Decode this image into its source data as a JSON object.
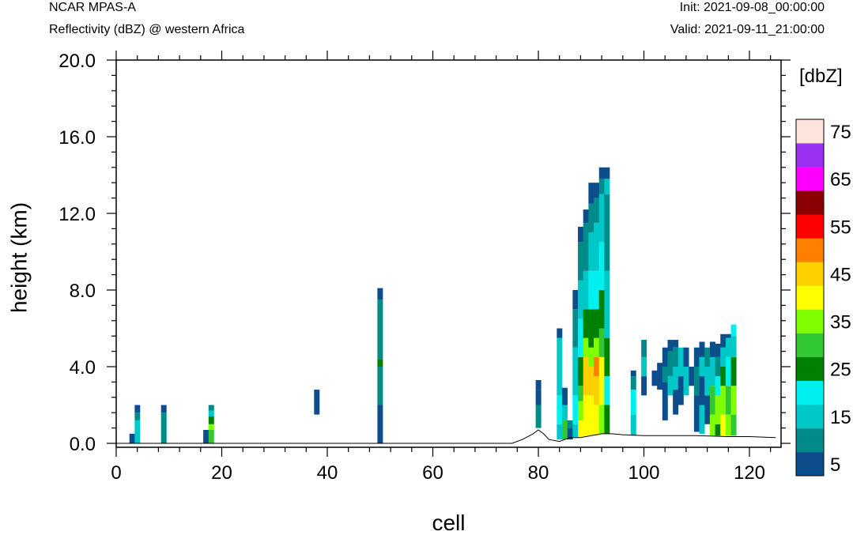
{
  "header": {
    "left_top": "NCAR MPAS-A",
    "left_bottom": "Reflectivity (dBZ) @ western Africa",
    "right_top": "Init: 2021-09-08_00:00:00",
    "right_bottom": "Valid: 2021-09-11_21:00:00"
  },
  "chart_data": {
    "type": "heatmap",
    "title": "Reflectivity (dBZ) @ western Africa",
    "xlabel": "cell",
    "ylabel": "height (km)",
    "xlim": [
      0,
      126
    ],
    "ylim": [
      0,
      20
    ],
    "x_ticks": [
      0,
      20,
      40,
      60,
      80,
      100,
      120
    ],
    "x_tick_labels": [
      "0",
      "20",
      "40",
      "60",
      "80",
      "100",
      "120"
    ],
    "y_ticks": [
      0,
      4,
      8,
      12,
      16,
      20
    ],
    "y_tick_labels": [
      "0.0",
      "4.0",
      "8.0",
      "12.0",
      "16.0",
      "20.0"
    ],
    "colorbar": {
      "label": "[dbZ]",
      "levels": [
        5,
        10,
        15,
        20,
        25,
        30,
        35,
        40,
        45,
        50,
        55,
        60,
        65,
        70,
        75
      ],
      "tick_labels": [
        "5",
        "15",
        "25",
        "35",
        "45",
        "55",
        "65",
        "75"
      ],
      "colors": [
        "#0e4d8c",
        "#008a8a",
        "#00c8c8",
        "#00f0f0",
        "#008000",
        "#32c832",
        "#80ff00",
        "#ffff00",
        "#ffd000",
        "#ff8000",
        "#ff0000",
        "#8b0000",
        "#ff00ff",
        "#9b30f0",
        "#ffe4dc"
      ]
    },
    "terrain_km": [
      [
        0,
        0
      ],
      [
        75,
        0
      ],
      [
        77,
        0.2
      ],
      [
        79,
        0.5
      ],
      [
        80,
        0.7
      ],
      [
        81,
        0.5
      ],
      [
        82,
        0.2
      ],
      [
        84,
        0.1
      ],
      [
        86,
        0.3
      ],
      [
        88,
        0.3
      ],
      [
        90,
        0.4
      ],
      [
        92,
        0.5
      ],
      [
        94,
        0.5
      ],
      [
        96,
        0.45
      ],
      [
        100,
        0.4
      ],
      [
        106,
        0.4
      ],
      [
        110,
        0.4
      ],
      [
        116,
        0.35
      ],
      [
        120,
        0.35
      ],
      [
        125,
        0.3
      ]
    ],
    "columns": [
      {
        "x": 3,
        "cells": [
          [
            0,
            0.5,
            5
          ]
        ]
      },
      {
        "x": 4,
        "cells": [
          [
            0,
            1.2,
            15
          ],
          [
            1.2,
            1.6,
            10
          ],
          [
            1.6,
            2.0,
            5
          ]
        ]
      },
      {
        "x": 9,
        "cells": [
          [
            0,
            1.6,
            10
          ],
          [
            1.6,
            2.0,
            5
          ]
        ]
      },
      {
        "x": 17,
        "cells": [
          [
            0,
            0.7,
            5
          ]
        ]
      },
      {
        "x": 18,
        "cells": [
          [
            0,
            0.7,
            30
          ],
          [
            0.7,
            1.0,
            35
          ],
          [
            1.0,
            1.4,
            25
          ],
          [
            1.4,
            1.7,
            15
          ],
          [
            1.7,
            2.0,
            10
          ]
        ]
      },
      {
        "x": 38,
        "cells": [
          [
            1.5,
            2.8,
            5
          ]
        ]
      },
      {
        "x": 50,
        "cells": [
          [
            0,
            2.0,
            5
          ],
          [
            2.0,
            4.0,
            10
          ],
          [
            4.0,
            4.4,
            25
          ],
          [
            4.4,
            7.5,
            10
          ],
          [
            7.5,
            8.1,
            5
          ]
        ]
      },
      {
        "x": 80,
        "cells": [
          [
            0.8,
            2.0,
            10
          ],
          [
            2.0,
            2.8,
            5
          ],
          [
            2.8,
            3.3,
            5
          ]
        ]
      },
      {
        "x": 84,
        "cells": [
          [
            0.2,
            1.0,
            15
          ],
          [
            1.0,
            2.5,
            20
          ],
          [
            2.5,
            5.5,
            15
          ],
          [
            5.5,
            6.0,
            5
          ]
        ]
      },
      {
        "x": 85,
        "cells": [
          [
            0.2,
            1.2,
            30
          ],
          [
            1.2,
            2.0,
            15
          ],
          [
            2.0,
            2.9,
            5
          ]
        ]
      },
      {
        "x": 86,
        "cells": [
          [
            0.2,
            0.8,
            5
          ],
          [
            0.8,
            1.2,
            10
          ]
        ]
      },
      {
        "x": 87,
        "cells": [
          [
            0.3,
            1.0,
            15
          ],
          [
            1.0,
            2.5,
            20
          ],
          [
            2.5,
            5.0,
            15
          ],
          [
            5.0,
            7.0,
            10
          ],
          [
            7.0,
            8.0,
            5
          ]
        ]
      },
      {
        "x": 88,
        "cells": [
          [
            0.3,
            1.2,
            40
          ],
          [
            1.2,
            2.2,
            35
          ],
          [
            2.2,
            3.0,
            30
          ],
          [
            3.0,
            4.5,
            25
          ],
          [
            4.5,
            6.5,
            20
          ],
          [
            6.5,
            8.5,
            15
          ],
          [
            8.5,
            10.5,
            10
          ],
          [
            10.5,
            11.3,
            5
          ]
        ]
      },
      {
        "x": 89,
        "cells": [
          [
            0.4,
            2.5,
            40
          ],
          [
            2.5,
            4.5,
            45
          ],
          [
            4.5,
            5.5,
            35
          ],
          [
            5.5,
            7.0,
            25
          ],
          [
            7.0,
            9.0,
            15
          ],
          [
            9.0,
            11.5,
            10
          ],
          [
            11.5,
            12.2,
            5
          ]
        ]
      },
      {
        "x": 90,
        "cells": [
          [
            0.4,
            2.5,
            40
          ],
          [
            2.5,
            4.0,
            45
          ],
          [
            4.0,
            5.0,
            35
          ],
          [
            5.0,
            7.0,
            25
          ],
          [
            7.0,
            9.0,
            20
          ],
          [
            9.0,
            11.0,
            15
          ],
          [
            11.0,
            12.5,
            10
          ],
          [
            12.5,
            13.6,
            5
          ]
        ]
      },
      {
        "x": 91,
        "cells": [
          [
            0.4,
            2.0,
            40
          ],
          [
            2.0,
            3.5,
            45
          ],
          [
            3.5,
            4.5,
            50
          ],
          [
            4.5,
            5.5,
            35
          ],
          [
            5.5,
            7.0,
            25
          ],
          [
            7.0,
            9.0,
            20
          ],
          [
            9.0,
            11.5,
            15
          ],
          [
            11.5,
            12.8,
            10
          ],
          [
            12.8,
            13.6,
            5
          ]
        ]
      },
      {
        "x": 92,
        "cells": [
          [
            0.5,
            2.0,
            35
          ],
          [
            2.0,
            4.5,
            40
          ],
          [
            4.5,
            6.0,
            30
          ],
          [
            6.0,
            8.0,
            25
          ],
          [
            8.0,
            10.5,
            20
          ],
          [
            10.5,
            13.0,
            15
          ],
          [
            13.0,
            13.8,
            10
          ],
          [
            13.8,
            14.4,
            5
          ]
        ]
      },
      {
        "x": 93,
        "cells": [
          [
            0.5,
            2.0,
            25
          ],
          [
            2.0,
            3.5,
            20
          ],
          [
            3.5,
            5.5,
            25
          ],
          [
            5.5,
            9.0,
            15
          ],
          [
            9.0,
            13.0,
            10
          ],
          [
            13.0,
            13.8,
            15
          ],
          [
            13.8,
            14.4,
            5
          ]
        ]
      },
      {
        "x": 98,
        "cells": [
          [
            0.4,
            1.5,
            15
          ],
          [
            1.5,
            2.8,
            20
          ],
          [
            2.8,
            3.5,
            10
          ],
          [
            3.5,
            3.8,
            5
          ]
        ]
      },
      {
        "x": 100,
        "cells": [
          [
            2.5,
            3.5,
            5
          ],
          [
            3.5,
            4.5,
            15
          ],
          [
            4.5,
            5.4,
            10
          ]
        ]
      },
      {
        "x": 102,
        "cells": [
          [
            3.0,
            3.8,
            5
          ]
        ]
      },
      {
        "x": 103,
        "cells": [
          [
            2.8,
            4.2,
            5
          ]
        ]
      },
      {
        "x": 104,
        "cells": [
          [
            1.2,
            3.2,
            5
          ],
          [
            3.2,
            4.0,
            10
          ],
          [
            4.0,
            5.0,
            5
          ]
        ]
      },
      {
        "x": 105,
        "cells": [
          [
            2.5,
            3.5,
            15
          ],
          [
            3.5,
            4.8,
            10
          ],
          [
            4.8,
            5.4,
            5
          ]
        ]
      },
      {
        "x": 106,
        "cells": [
          [
            1.5,
            2.8,
            5
          ],
          [
            2.8,
            4.0,
            15
          ],
          [
            4.0,
            5.0,
            10
          ],
          [
            5.0,
            5.4,
            5
          ]
        ]
      },
      {
        "x": 107,
        "cells": [
          [
            2.0,
            3.5,
            5
          ],
          [
            3.5,
            5.0,
            15
          ]
        ]
      },
      {
        "x": 108,
        "cells": [
          [
            2.5,
            4.0,
            15
          ],
          [
            4.0,
            5.0,
            5
          ]
        ]
      },
      {
        "x": 109,
        "cells": [
          [
            3.0,
            4.0,
            5
          ]
        ]
      },
      {
        "x": 110,
        "cells": [
          [
            0.6,
            2.5,
            5
          ],
          [
            2.5,
            4.0,
            10
          ],
          [
            4.0,
            5.0,
            5
          ]
        ]
      },
      {
        "x": 111,
        "cells": [
          [
            0.5,
            2.0,
            15
          ],
          [
            2.0,
            3.5,
            5
          ],
          [
            3.5,
            4.5,
            15
          ],
          [
            4.5,
            5.3,
            5
          ]
        ]
      },
      {
        "x": 112,
        "cells": [
          [
            1.0,
            2.5,
            5
          ],
          [
            2.5,
            4.0,
            15
          ],
          [
            4.0,
            5.0,
            10
          ]
        ]
      },
      {
        "x": 113,
        "cells": [
          [
            0.4,
            1.5,
            35
          ],
          [
            1.5,
            3.0,
            30
          ],
          [
            3.0,
            4.5,
            15
          ],
          [
            4.5,
            5.3,
            5
          ]
        ]
      },
      {
        "x": 114,
        "cells": [
          [
            0.4,
            1.0,
            25
          ],
          [
            1.0,
            2.5,
            35
          ],
          [
            2.5,
            3.5,
            20
          ],
          [
            3.5,
            4.5,
            10
          ],
          [
            4.5,
            5.2,
            5
          ]
        ]
      },
      {
        "x": 115,
        "cells": [
          [
            0.4,
            1.5,
            40
          ],
          [
            1.5,
            3.0,
            35
          ],
          [
            3.0,
            4.0,
            25
          ],
          [
            4.0,
            5.0,
            15
          ],
          [
            5.0,
            5.7,
            5
          ]
        ]
      },
      {
        "x": 116,
        "cells": [
          [
            0.4,
            1.5,
            35
          ],
          [
            1.5,
            3.0,
            30
          ],
          [
            3.0,
            4.5,
            20
          ],
          [
            4.5,
            5.5,
            15
          ],
          [
            5.5,
            5.7,
            5
          ]
        ]
      },
      {
        "x": 117,
        "cells": [
          [
            0.4,
            1.5,
            30
          ],
          [
            1.5,
            3.0,
            35
          ],
          [
            3.0,
            4.5,
            25
          ],
          [
            4.5,
            5.6,
            15
          ],
          [
            5.6,
            6.2,
            20
          ]
        ]
      }
    ]
  }
}
